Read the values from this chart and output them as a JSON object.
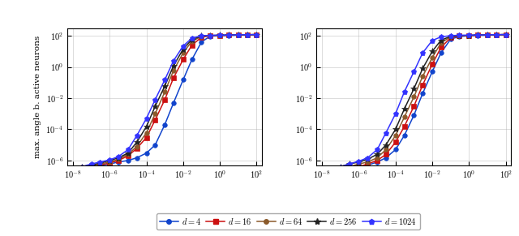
{
  "ylabel": "max. angle b. active neurons",
  "series_left": [
    {
      "label": "$d = 4$",
      "color": "#1144cc",
      "marker": "o",
      "ms": 4,
      "x": [
        100,
        30,
        10,
        3,
        1,
        0.3,
        0.1,
        0.03,
        0.01,
        0.003,
        0.001,
        0.0003,
        0.0001,
        3e-05,
        1e-05,
        3e-06,
        1e-06,
        3e-07,
        1e-07,
        3e-08,
        1e-08
      ],
      "y": [
        120,
        115,
        110,
        105,
        100,
        95,
        40,
        3,
        0.15,
        0.005,
        0.0002,
        1e-05,
        3e-06,
        1.5e-06,
        1e-06,
        8e-07,
        6e-07,
        5e-07,
        4e-07,
        3e-07,
        2.5e-07
      ]
    },
    {
      "label": "$d = 16$",
      "color": "#cc1111",
      "marker": "s",
      "ms": 4,
      "x": [
        100,
        30,
        10,
        3,
        1,
        0.3,
        0.1,
        0.03,
        0.01,
        0.003,
        0.001,
        0.0003,
        0.0001,
        3e-05,
        1e-05,
        3e-06,
        1e-06,
        3e-07,
        1e-07,
        3e-08,
        1e-08
      ],
      "y": [
        120,
        116,
        112,
        108,
        104,
        100,
        80,
        25,
        3,
        0.2,
        0.008,
        0.0004,
        3e-05,
        6e-06,
        2e-06,
        1e-06,
        7e-07,
        5e-07,
        4e-07,
        3e-07,
        2e-07
      ]
    },
    {
      "label": "$d = 64$",
      "color": "#8B5A2B",
      "marker": "o",
      "ms": 4,
      "x": [
        100,
        30,
        10,
        3,
        1,
        0.3,
        0.1,
        0.03,
        0.01,
        0.003,
        0.001,
        0.0003,
        0.0001,
        3e-05,
        1e-05,
        3e-06,
        1e-06,
        3e-07,
        1e-07,
        3e-08,
        1e-08
      ],
      "y": [
        120,
        116,
        113,
        110,
        106,
        103,
        90,
        45,
        8,
        0.6,
        0.025,
        0.001,
        6e-05,
        8e-06,
        2.5e-06,
        1.2e-06,
        8e-07,
        6e-07,
        5e-07,
        4e-07,
        3e-07
      ]
    },
    {
      "label": "$d = 256$",
      "color": "#222222",
      "marker": "*",
      "ms": 6,
      "x": [
        100,
        30,
        10,
        3,
        1,
        0.3,
        0.1,
        0.03,
        0.01,
        0.003,
        0.001,
        0.0003,
        0.0001,
        3e-05,
        1e-05,
        3e-06,
        1e-06,
        3e-07,
        1e-07,
        3e-08,
        1e-08
      ],
      "y": [
        120,
        117,
        114,
        111,
        108,
        105,
        96,
        58,
        14,
        1.2,
        0.06,
        0.003,
        0.00015,
        1.5e-05,
        3e-06,
        1.5e-06,
        1e-06,
        7e-07,
        5e-07,
        4e-07,
        3e-07
      ]
    },
    {
      "label": "$d = 1024$",
      "color": "#3333ff",
      "marker": "p",
      "ms": 5,
      "x": [
        100,
        30,
        10,
        3,
        1,
        0.3,
        0.1,
        0.03,
        0.01,
        0.003,
        0.001,
        0.0003,
        0.0001,
        3e-05,
        1e-05,
        3e-06,
        1e-06,
        3e-07,
        1e-07,
        3e-08,
        1e-08
      ],
      "y": [
        120,
        117,
        115,
        112,
        109,
        107,
        100,
        70,
        22,
        2.5,
        0.15,
        0.008,
        0.0005,
        4e-05,
        5e-06,
        1.8e-06,
        1.1e-06,
        8e-07,
        6e-07,
        4e-07,
        3e-07
      ]
    }
  ],
  "series_right": [
    {
      "label": "$d = 4$",
      "color": "#1144cc",
      "marker": "o",
      "ms": 4,
      "x": [
        100,
        30,
        10,
        3,
        1,
        0.3,
        0.1,
        0.03,
        0.01,
        0.003,
        0.001,
        0.0003,
        0.0001,
        3e-05,
        1e-05,
        3e-06,
        1e-06,
        3e-07,
        1e-07,
        3e-08,
        1e-08
      ],
      "y": [
        120,
        115,
        110,
        105,
        100,
        90,
        60,
        8,
        0.5,
        0.02,
        0.0008,
        4e-05,
        5e-06,
        1.5e-06,
        8e-07,
        5e-07,
        4e-07,
        3e-07,
        2e-07,
        1.5e-07,
        1e-07
      ]
    },
    {
      "label": "$d = 16$",
      "color": "#cc1111",
      "marker": "s",
      "ms": 4,
      "x": [
        100,
        30,
        10,
        3,
        1,
        0.3,
        0.1,
        0.03,
        0.01,
        0.003,
        0.001,
        0.0003,
        0.0001,
        3e-05,
        1e-05,
        3e-06,
        1e-06,
        3e-07,
        1e-07,
        3e-08,
        1e-08
      ],
      "y": [
        120,
        116,
        112,
        108,
        104,
        98,
        75,
        18,
        1.5,
        0.07,
        0.003,
        0.00015,
        1.5e-05,
        2.5e-06,
        1e-06,
        6e-07,
        4e-07,
        3e-07,
        2e-07,
        1.5e-07,
        1e-07
      ]
    },
    {
      "label": "$d = 64$",
      "color": "#8B5A2B",
      "marker": "o",
      "ms": 4,
      "x": [
        100,
        30,
        10,
        3,
        1,
        0.3,
        0.1,
        0.03,
        0.01,
        0.003,
        0.001,
        0.0003,
        0.0001,
        3e-05,
        1e-05,
        3e-06,
        1e-06,
        3e-07,
        1e-07,
        3e-08,
        1e-08
      ],
      "y": [
        120,
        116,
        113,
        109,
        105,
        101,
        86,
        35,
        4,
        0.25,
        0.012,
        0.0006,
        4e-05,
        5e-06,
        1.5e-06,
        8e-07,
        6e-07,
        4e-07,
        3e-07,
        2e-07,
        1.5e-07
      ]
    },
    {
      "label": "$d = 256$",
      "color": "#222222",
      "marker": "*",
      "ms": 6,
      "x": [
        100,
        30,
        10,
        3,
        1,
        0.3,
        0.1,
        0.03,
        0.01,
        0.003,
        0.001,
        0.0003,
        0.0001,
        3e-05,
        1e-05,
        3e-06,
        1e-06,
        3e-07,
        1e-07,
        3e-08,
        1e-08
      ],
      "y": [
        120,
        117,
        114,
        110,
        106,
        103,
        92,
        52,
        10,
        0.8,
        0.04,
        0.002,
        0.0001,
        1e-05,
        2.5e-06,
        1.2e-06,
        8e-07,
        6e-07,
        4e-07,
        3e-07,
        2e-07
      ]
    },
    {
      "label": "$d = 1024$",
      "color": "#3333ff",
      "marker": "p",
      "ms": 5,
      "x": [
        100,
        30,
        10,
        3,
        1,
        0.3,
        0.1,
        0.03,
        0.01,
        0.003,
        0.001,
        0.0003,
        0.0001,
        3e-05,
        1e-05,
        3e-06,
        1e-06,
        3e-07,
        1e-07,
        3e-08,
        1e-08
      ],
      "y": [
        120,
        117,
        115,
        112,
        110,
        108,
        102,
        85,
        50,
        8,
        0.5,
        0.025,
        0.001,
        6e-05,
        5e-06,
        1.5e-06,
        9e-07,
        6e-07,
        4e-07,
        3e-07,
        2e-07
      ]
    }
  ],
  "x_ticks": [
    100,
    1,
    0.01,
    0.0001,
    1e-06,
    1e-08
  ],
  "x_tick_labels": [
    "$10^2$",
    "$10^0$",
    "$10^{-2}$",
    "$10^{-4}$",
    "$10^{-6}$",
    "$10^{-8}$"
  ],
  "y_ticks": [
    100,
    1,
    0.01,
    0.0001,
    1e-06
  ],
  "y_tick_labels": [
    "$10^2$",
    "$10^0$",
    "$10^{-2}$",
    "$10^{-4}$",
    "$10^{-6}$"
  ]
}
